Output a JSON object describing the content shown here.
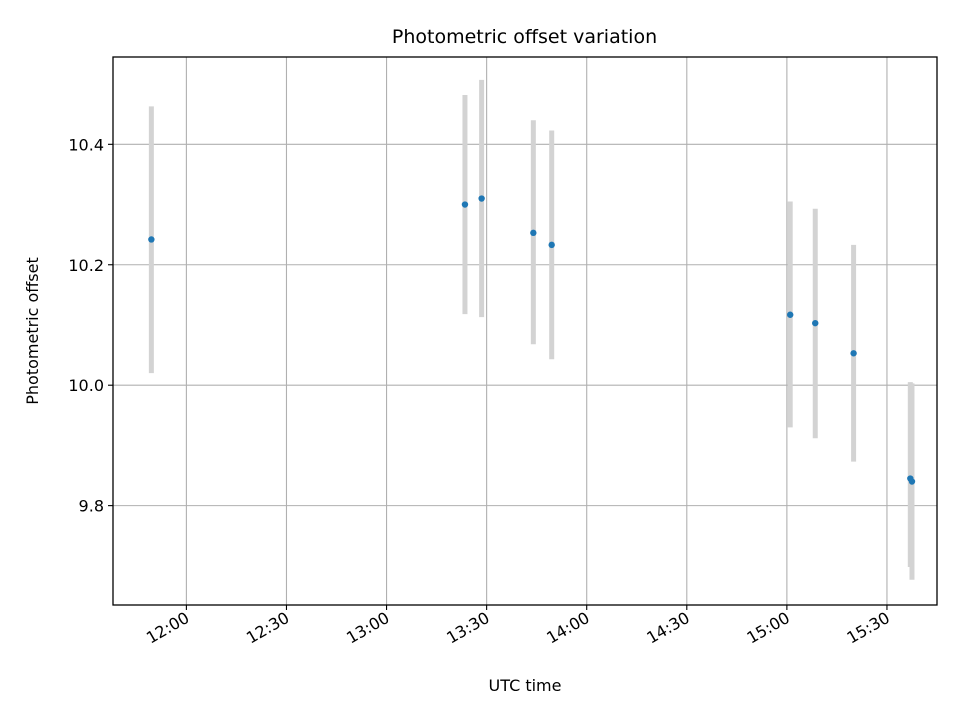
{
  "chart_data": {
    "type": "scatter",
    "title": "Photometric offset variation",
    "xlabel": "UTC time",
    "ylabel": "Photometric offset",
    "grid": true,
    "x_axis": {
      "unit": "time of day (UTC)",
      "range": [
        "11:38",
        "15:45"
      ],
      "ticks": [
        "12:00",
        "12:30",
        "13:00",
        "13:30",
        "14:00",
        "14:30",
        "15:00",
        "15:30"
      ]
    },
    "y_axis": {
      "range": [
        9.635,
        10.545
      ],
      "ticks": [
        9.8,
        10.0,
        10.2,
        10.4
      ],
      "tick_labels": [
        "9.8",
        "10.0",
        "10.2",
        "10.4"
      ]
    },
    "colors": {
      "marker": "#1f77b4",
      "errorbar": "#d3d3d3"
    },
    "points": [
      {
        "x": "11:49:30",
        "y": 10.242,
        "ylow": 10.02,
        "yhigh": 10.463
      },
      {
        "x": "13:23:30",
        "y": 10.3,
        "ylow": 10.118,
        "yhigh": 10.482
      },
      {
        "x": "13:28:30",
        "y": 10.31,
        "ylow": 10.113,
        "yhigh": 10.507
      },
      {
        "x": "13:44:00",
        "y": 10.253,
        "ylow": 10.068,
        "yhigh": 10.44
      },
      {
        "x": "13:49:30",
        "y": 10.233,
        "ylow": 10.043,
        "yhigh": 10.423
      },
      {
        "x": "15:01:00",
        "y": 10.117,
        "ylow": 9.93,
        "yhigh": 10.305
      },
      {
        "x": "15:08:30",
        "y": 10.103,
        "ylow": 9.912,
        "yhigh": 10.293
      },
      {
        "x": "15:20:00",
        "y": 10.053,
        "ylow": 9.873,
        "yhigh": 10.233
      },
      {
        "x": "15:37:00",
        "y": 9.845,
        "ylow": 9.698,
        "yhigh": 10.005
      },
      {
        "x": "15:37:30",
        "y": 9.84,
        "ylow": 9.677,
        "yhigh": 10.003
      }
    ]
  }
}
